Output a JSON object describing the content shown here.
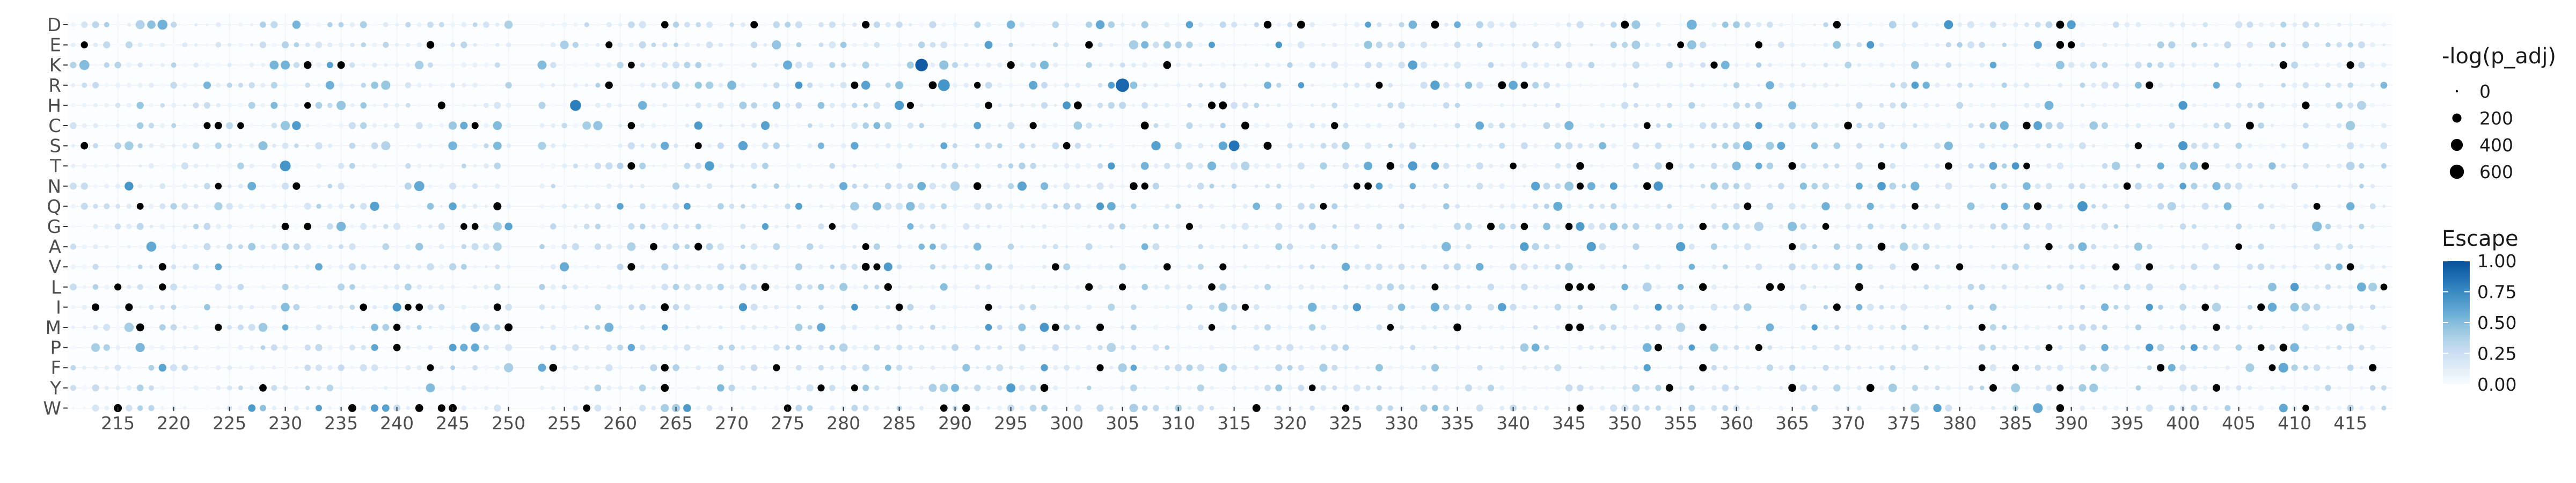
{
  "chart_data": {
    "type": "scatter",
    "title": "",
    "xlabel": "",
    "ylabel": "",
    "rows": [
      "D",
      "E",
      "K",
      "R",
      "H",
      "C",
      "S",
      "T",
      "N",
      "Q",
      "G",
      "A",
      "V",
      "L",
      "I",
      "M",
      "P",
      "F",
      "Y",
      "W"
    ],
    "xlim": [
      211,
      419
    ],
    "xticks": [
      215,
      220,
      225,
      230,
      235,
      240,
      245,
      250,
      255,
      260,
      265,
      270,
      275,
      280,
      285,
      290,
      295,
      300,
      305,
      310,
      315,
      320,
      325,
      330,
      335,
      340,
      345,
      350,
      355,
      360,
      365,
      370,
      375,
      380,
      385,
      390,
      395,
      400,
      405,
      410,
      415
    ],
    "grid": true,
    "size_legend": {
      "title": "-log(p_adj)",
      "labels": [
        "0",
        "200",
        "400",
        "600"
      ],
      "values": [
        0,
        200,
        400,
        600
      ]
    },
    "color_legend": {
      "title": "Escape",
      "labels": [
        "1.00",
        "0.75",
        "0.50",
        "0.25",
        "0.00"
      ],
      "values": [
        1.0,
        0.75,
        0.5,
        0.25,
        0.0
      ],
      "colors": [
        "#f7fbff",
        "#deebf7",
        "#c6dbef",
        "#9ecae1",
        "#6baed6",
        "#4292c6",
        "#2171b5",
        "#08519c"
      ]
    },
    "empty_positions": [
      251,
      252
    ],
    "notable_points": [
      {
        "site": 219,
        "aa": "D",
        "escape": 0.55,
        "p": 250
      },
      {
        "site": 212,
        "aa": "K",
        "escape": 0.5,
        "p": 250
      },
      {
        "site": 287,
        "aa": "K",
        "escape": 0.95,
        "p": 450
      },
      {
        "site": 289,
        "aa": "R",
        "escape": 0.7,
        "p": 380
      },
      {
        "site": 305,
        "aa": "R",
        "escape": 0.9,
        "p": 520
      },
      {
        "site": 256,
        "aa": "H",
        "escape": 0.8,
        "p": 320
      },
      {
        "site": 315,
        "aa": "S",
        "escape": 0.85,
        "p": 300
      },
      {
        "site": 230,
        "aa": "T",
        "escape": 0.7,
        "p": 300
      },
      {
        "site": 242,
        "aa": "N",
        "escape": 0.6,
        "p": 260
      },
      {
        "site": 391,
        "aa": "Q",
        "escape": 0.7,
        "p": 260
      },
      {
        "site": 218,
        "aa": "A",
        "escape": 0.6,
        "p": 250
      },
      {
        "site": 356,
        "aa": "D",
        "escape": 0.55,
        "p": 250
      },
      {
        "site": 387,
        "aa": "W",
        "escape": 0.6,
        "p": 240
      },
      {
        "site": 409,
        "aa": "F",
        "escape": 0.6,
        "p": 240
      },
      {
        "site": 412,
        "aa": "G",
        "escape": 0.5,
        "p": 240
      }
    ]
  }
}
